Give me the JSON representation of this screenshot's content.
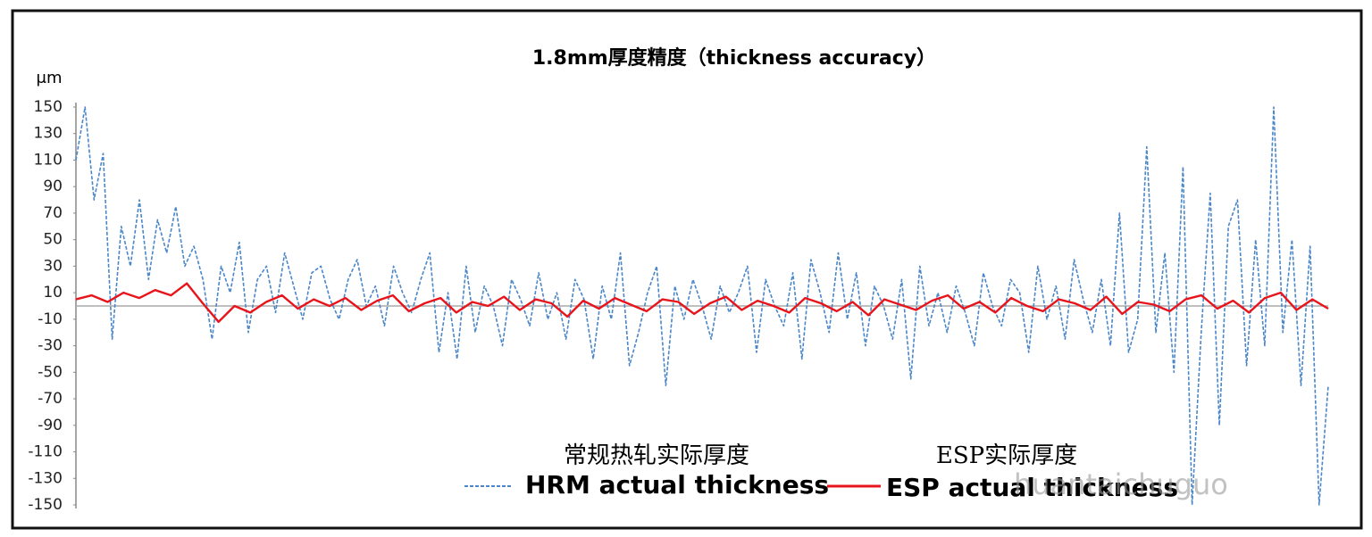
{
  "chart_data": {
    "type": "line",
    "title": "1.8mm厚度精度（thickness accuracy）",
    "y_label": "μm",
    "ylim": [
      -150,
      150
    ],
    "yticks": [
      150,
      130,
      110,
      90,
      70,
      50,
      30,
      10,
      -10,
      -30,
      -50,
      -70,
      -90,
      -110,
      -130,
      -150
    ],
    "legend_position": "bottom",
    "series": [
      {
        "name": "HRM actual thickness",
        "name_cn": "常规热轧实际厚度",
        "color": "#4a86c8",
        "dashed": true,
        "values": [
          110,
          150,
          80,
          115,
          -25,
          60,
          30,
          80,
          20,
          65,
          40,
          75,
          30,
          45,
          20,
          -25,
          30,
          10,
          48,
          -20,
          20,
          30,
          -5,
          40,
          15,
          -10,
          25,
          30,
          5,
          -10,
          20,
          35,
          0,
          15,
          -15,
          30,
          10,
          -5,
          20,
          40,
          -35,
          10,
          -40,
          30,
          -20,
          15,
          0,
          -30,
          20,
          5,
          -15,
          25,
          -10,
          10,
          -25,
          20,
          5,
          -40,
          15,
          -10,
          40,
          -45,
          -20,
          10,
          30,
          -60,
          15,
          -10,
          20,
          0,
          -25,
          15,
          -5,
          10,
          30,
          -35,
          20,
          0,
          -15,
          25,
          -40,
          35,
          10,
          -20,
          40,
          -10,
          25,
          -30,
          15,
          0,
          -25,
          20,
          -55,
          30,
          -15,
          10,
          -20,
          15,
          -5,
          -30,
          25,
          0,
          -15,
          20,
          10,
          -35,
          30,
          -10,
          15,
          -25,
          35,
          5,
          -20,
          20,
          -30,
          70,
          -35,
          -10,
          120,
          -20,
          40,
          -50,
          105,
          -150,
          -20,
          85,
          -90,
          60,
          80,
          -45,
          50,
          -30,
          150,
          -20,
          50,
          -60,
          45,
          -150,
          -60
        ]
      },
      {
        "name": "ESP actual thickness",
        "name_cn": "ESP实际厚度",
        "color": "#e8141b",
        "dashed": false,
        "values": [
          5,
          8,
          3,
          10,
          6,
          12,
          8,
          17,
          2,
          -12,
          0,
          -5,
          3,
          8,
          -2,
          5,
          0,
          6,
          -3,
          4,
          8,
          -4,
          2,
          6,
          -5,
          3,
          0,
          7,
          -3,
          5,
          2,
          -8,
          4,
          -2,
          6,
          1,
          -4,
          5,
          3,
          -6,
          2,
          7,
          -3,
          4,
          0,
          -5,
          6,
          2,
          -4,
          3,
          -7,
          5,
          1,
          -3,
          4,
          8,
          -2,
          3,
          -5,
          6,
          0,
          -4,
          5,
          2,
          -3,
          7,
          -6,
          3,
          1,
          -4,
          5,
          8,
          -2,
          4,
          -5,
          6,
          10,
          -3,
          5,
          -2
        ]
      }
    ],
    "watermark": "huantaichuguo"
  }
}
